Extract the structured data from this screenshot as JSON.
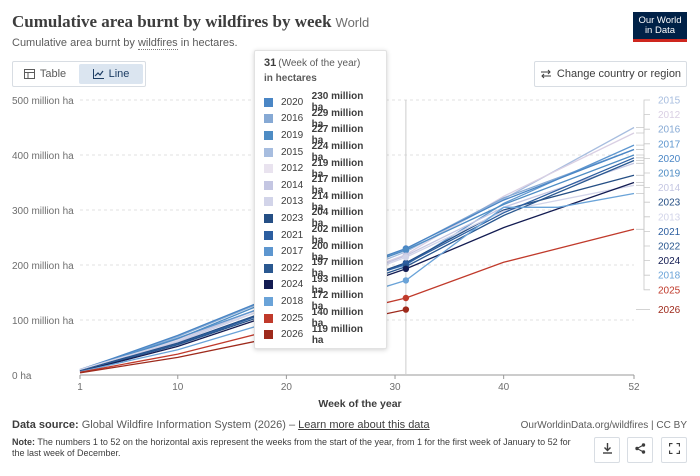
{
  "header": {
    "title": "Cumulative area burnt by wildfires by week",
    "entity": "World",
    "subtitle_prefix": "Cumulative area burnt by ",
    "subtitle_link": "wildfires",
    "subtitle_suffix": " in hectares.",
    "logo_line1": "Our World",
    "logo_line2": "in Data"
  },
  "controls": {
    "tab_table": "Table",
    "tab_line": "Line",
    "change_country": "Change country or region"
  },
  "tooltip": {
    "week": "31",
    "week_label": "(Week of the year)",
    "unit": "in hectares",
    "rows": [
      {
        "year": "2020",
        "value": "230 million ha",
        "color": "#4a86c5"
      },
      {
        "year": "2016",
        "value": "229 million ha",
        "color": "#86a9d4"
      },
      {
        "year": "2019",
        "value": "227 million ha",
        "color": "#4e8cc4"
      },
      {
        "year": "2015",
        "value": "224 million ha",
        "color": "#a7bddf"
      },
      {
        "year": "2012",
        "value": "219 million ha",
        "color": "#e9e3ef"
      },
      {
        "year": "2014",
        "value": "217 million ha",
        "color": "#c4c6e2"
      },
      {
        "year": "2013",
        "value": "214 million ha",
        "color": "#d2d4e9"
      },
      {
        "year": "2023",
        "value": "204 million ha",
        "color": "#254f85"
      },
      {
        "year": "2021",
        "value": "202 million ha",
        "color": "#2c5ea0"
      },
      {
        "year": "2017",
        "value": "200 million ha",
        "color": "#5d96cf"
      },
      {
        "year": "2022",
        "value": "197 million ha",
        "color": "#2a5890"
      },
      {
        "year": "2024",
        "value": "193 million ha",
        "color": "#131c52"
      },
      {
        "year": "2018",
        "value": "172 million ha",
        "color": "#6aa3d8"
      },
      {
        "year": "2025",
        "value": "140 million ha",
        "color": "#c03a2b"
      },
      {
        "year": "2026",
        "value": "119 million ha",
        "color": "#9e2a1c"
      }
    ]
  },
  "chart_data": {
    "type": "line",
    "xlabel": "Week of the year",
    "ylabel": "",
    "xlim": [
      1,
      52
    ],
    "ylim": [
      0,
      500
    ],
    "x_ticks": [
      1,
      10,
      20,
      30,
      40,
      52
    ],
    "y_ticks": [
      {
        "value": 0,
        "label": "0 ha"
      },
      {
        "value": 100,
        "label": "100 million ha"
      },
      {
        "value": 200,
        "label": "200 million ha"
      },
      {
        "value": 300,
        "label": "300 million ha"
      },
      {
        "value": 400,
        "label": "400 million ha"
      },
      {
        "value": 500,
        "label": "500 million ha"
      }
    ],
    "hover_week": 31,
    "grid": "horizontal",
    "legend_placement": "right",
    "series": [
      {
        "name": "2015",
        "color": "#a7bddf",
        "points": [
          [
            1,
            8
          ],
          [
            10,
            62
          ],
          [
            20,
            140
          ],
          [
            31,
            224
          ],
          [
            40,
            320
          ],
          [
            52,
            450
          ]
        ]
      },
      {
        "name": "2012",
        "color": "#d9cfe3",
        "points": [
          [
            1,
            9
          ],
          [
            10,
            65
          ],
          [
            20,
            138
          ],
          [
            31,
            219
          ],
          [
            40,
            325
          ],
          [
            52,
            440
          ]
        ]
      },
      {
        "name": "2016",
        "color": "#86a9d4",
        "points": [
          [
            1,
            10
          ],
          [
            10,
            70
          ],
          [
            20,
            150
          ],
          [
            31,
            229
          ],
          [
            40,
            322
          ],
          [
            52,
            410
          ]
        ]
      },
      {
        "name": "2017",
        "color": "#5d96cf",
        "points": [
          [
            1,
            10
          ],
          [
            10,
            67
          ],
          [
            20,
            138
          ],
          [
            31,
            200
          ],
          [
            40,
            312
          ],
          [
            52,
            418
          ]
        ]
      },
      {
        "name": "2020",
        "color": "#4a86c5",
        "points": [
          [
            1,
            9
          ],
          [
            10,
            72
          ],
          [
            20,
            152
          ],
          [
            31,
            230
          ],
          [
            40,
            318
          ],
          [
            52,
            410
          ]
        ]
      },
      {
        "name": "2019",
        "color": "#4e8cc4",
        "points": [
          [
            1,
            8
          ],
          [
            10,
            66
          ],
          [
            20,
            147
          ],
          [
            31,
            227
          ],
          [
            40,
            310
          ],
          [
            52,
            400
          ]
        ]
      },
      {
        "name": "2014",
        "color": "#c4c6e2",
        "points": [
          [
            1,
            9
          ],
          [
            10,
            60
          ],
          [
            20,
            135
          ],
          [
            31,
            217
          ],
          [
            40,
            305
          ],
          [
            52,
            385
          ]
        ]
      },
      {
        "name": "2023",
        "color": "#254f85",
        "points": [
          [
            1,
            8
          ],
          [
            10,
            58
          ],
          [
            20,
            128
          ],
          [
            31,
            204
          ],
          [
            40,
            300
          ],
          [
            52,
            363
          ]
        ]
      },
      {
        "name": "2013",
        "color": "#d2d4e9",
        "points": [
          [
            1,
            10
          ],
          [
            10,
            62
          ],
          [
            20,
            134
          ],
          [
            31,
            214
          ],
          [
            40,
            298
          ],
          [
            52,
            345
          ]
        ]
      },
      {
        "name": "2021",
        "color": "#2c5ea0",
        "points": [
          [
            1,
            7
          ],
          [
            10,
            56
          ],
          [
            20,
            126
          ],
          [
            31,
            202
          ],
          [
            40,
            295
          ],
          [
            52,
            395
          ]
        ]
      },
      {
        "name": "2022",
        "color": "#2a5890",
        "points": [
          [
            1,
            7
          ],
          [
            10,
            55
          ],
          [
            20,
            122
          ],
          [
            31,
            197
          ],
          [
            40,
            290
          ],
          [
            52,
            390
          ]
        ]
      },
      {
        "name": "2024",
        "color": "#131c52",
        "points": [
          [
            1,
            6
          ],
          [
            10,
            52
          ],
          [
            20,
            118
          ],
          [
            31,
            193
          ],
          [
            40,
            268
          ],
          [
            52,
            350
          ]
        ]
      },
      {
        "name": "2018",
        "color": "#6aa3d8",
        "points": [
          [
            1,
            6
          ],
          [
            10,
            46
          ],
          [
            20,
            105
          ],
          [
            31,
            172
          ],
          [
            40,
            305
          ],
          [
            45,
            305
          ],
          [
            52,
            330
          ]
        ]
      },
      {
        "name": "2025",
        "color": "#c03a2b",
        "points": [
          [
            1,
            5
          ],
          [
            10,
            38
          ],
          [
            20,
            88
          ],
          [
            31,
            140
          ],
          [
            40,
            205
          ],
          [
            52,
            265
          ]
        ]
      },
      {
        "name": "2026",
        "color": "#9e2a1c",
        "points": [
          [
            1,
            4
          ],
          [
            10,
            32
          ],
          [
            20,
            73
          ],
          [
            31,
            119
          ]
        ]
      }
    ],
    "legend_order": [
      "2015",
      "2012",
      "2016",
      "2017",
      "2020",
      "2019",
      "2014",
      "2023",
      "2013",
      "2021",
      "2022",
      "2024",
      "2018",
      "2025",
      "2026"
    ]
  },
  "footer": {
    "source_label": "Data source:",
    "source_text": "Global Wildfire Information System (2026) – ",
    "learn_more": "Learn more about this data",
    "url": "OurWorldinData.org/wildfires | CC BY",
    "note_label": "Note:",
    "note_text": "The numbers 1 to 52 on the horizontal axis represent the weeks from the start of the year, from 1 for the first week of January to 52 for the last week of December."
  }
}
